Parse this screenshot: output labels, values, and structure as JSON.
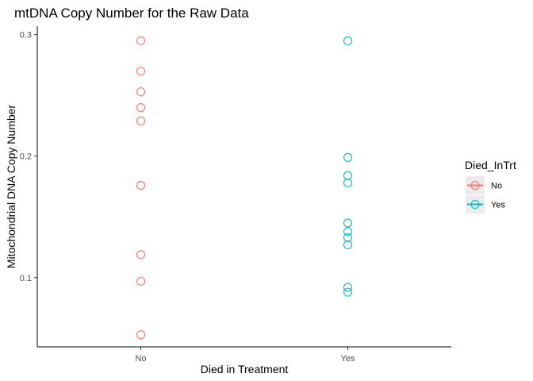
{
  "chart_data": {
    "type": "scatter",
    "title": "mtDNA Copy Number for the Raw Data",
    "xlabel": "Died in Treatment",
    "ylabel": "Mitochondrial DNA Copy Number",
    "categories": [
      "No",
      "Yes"
    ],
    "y_ticks": [
      "0.1",
      "0.2",
      "0.3"
    ],
    "ylim": [
      0.043,
      0.307
    ],
    "grid": false,
    "legend": {
      "title": "Died_InTrt",
      "placement": "right",
      "entries": [
        "No",
        "Yes"
      ]
    },
    "series": [
      {
        "name": "No",
        "color": "#F8766D",
        "x": "No",
        "values": [
          0.295,
          0.27,
          0.253,
          0.24,
          0.229,
          0.176,
          0.119,
          0.097,
          0.053
        ]
      },
      {
        "name": "Yes",
        "color": "#00BFC4",
        "x": "Yes",
        "values": [
          0.295,
          0.199,
          0.184,
          0.178,
          0.145,
          0.138,
          0.133,
          0.127,
          0.092,
          0.088
        ]
      }
    ]
  }
}
